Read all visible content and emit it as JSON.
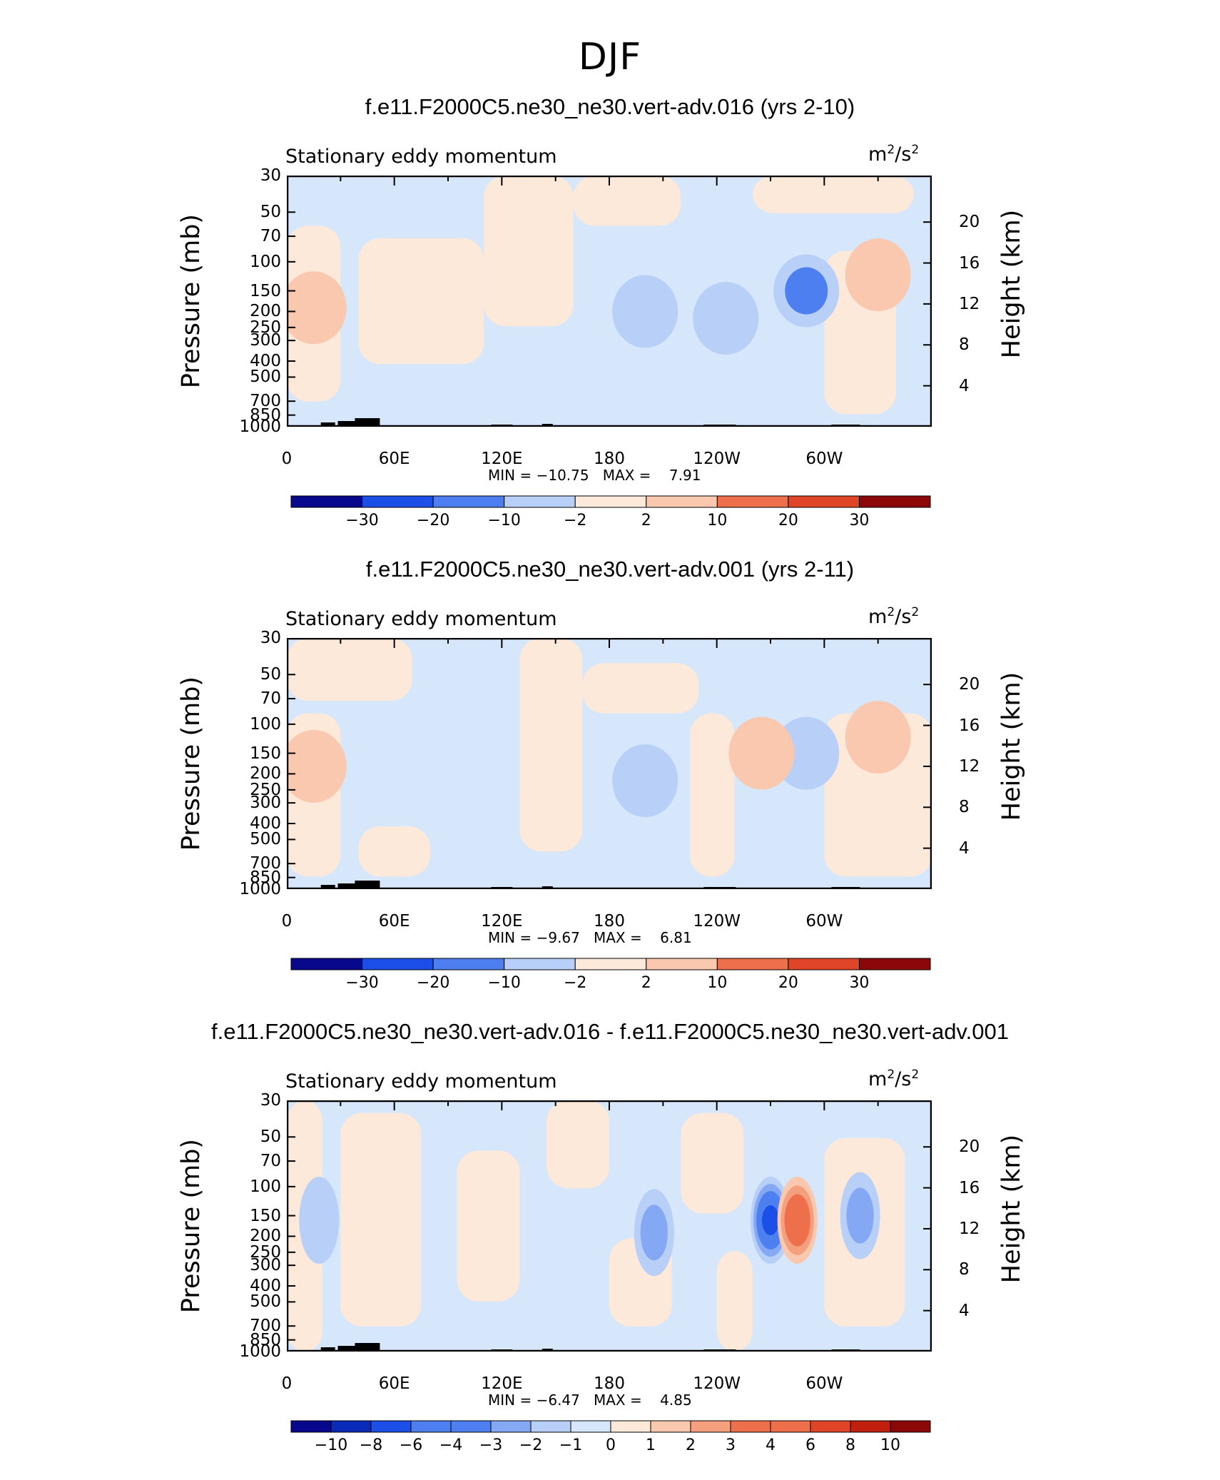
{
  "title": "DJF",
  "panels": [
    {
      "title": "f.e11.F2000C5.ne30_ne30.vert-adv.016 (yrs 2-10)",
      "left_label": "Stationary eddy momentum",
      "units_base": "m",
      "units_exp1": "2",
      "units_mid": "/s",
      "units_exp2": "2",
      "min_label": "MIN =",
      "min_value": "−10.75",
      "max_label": "MAX =",
      "max_value": "7.91",
      "colorbar_labels": [
        "−30",
        "−20",
        "−10",
        "−2",
        "2",
        "10",
        "20",
        "30"
      ]
    },
    {
      "title": "f.e11.F2000C5.ne30_ne30.vert-adv.001 (yrs 2-11)",
      "left_label": "Stationary eddy momentum",
      "units_base": "m",
      "units_exp1": "2",
      "units_mid": "/s",
      "units_exp2": "2",
      "min_label": "MIN =",
      "min_value": "−9.67",
      "max_label": "MAX =",
      "max_value": "6.81",
      "colorbar_labels": [
        "−30",
        "−20",
        "−10",
        "−2",
        "2",
        "10",
        "20",
        "30"
      ]
    },
    {
      "title": "f.e11.F2000C5.ne30_ne30.vert-adv.016 - f.e11.F2000C5.ne30_ne30.vert-adv.001",
      "left_label": "Stationary eddy momentum",
      "units_base": "m",
      "units_exp1": "2",
      "units_mid": "/s",
      "units_exp2": "2",
      "min_label": "MIN =",
      "min_value": "−6.47",
      "max_label": "MAX =",
      "max_value": "4.85",
      "colorbar_labels": [
        "−10",
        "−8",
        "−6",
        "−4",
        "−3",
        "−2",
        "−1",
        "0",
        "1",
        "2",
        "3",
        "4",
        "6",
        "8",
        "10"
      ]
    }
  ],
  "axes": {
    "ylabel": "Pressure (mb)",
    "ylabel_right": "Height (km)",
    "pressure_ticks": [
      "30",
      "50",
      "70",
      "100",
      "150",
      "200",
      "250",
      "300",
      "400",
      "500",
      "700",
      "850",
      "1000"
    ],
    "height_ticks": [
      "20",
      "16",
      "12",
      "8",
      "4"
    ],
    "x_ticks": [
      "0",
      "60E",
      "120E",
      "180",
      "120W",
      "60W"
    ]
  },
  "colors": {
    "fill_palette": [
      "#08088c",
      "#0a2ab8",
      "#1c4fe8",
      "#4d7ff0",
      "#85a8f5",
      "#b8cff8",
      "#d6e6fb",
      "#fde9d9",
      "#f9c8ae",
      "#f4a07e",
      "#ee6f4c",
      "#e14527",
      "#c2200f",
      "#8c0808"
    ]
  },
  "chart_data": [
    {
      "type": "heatmap",
      "title": "f.e11.F2000C5.ne30_ne30.vert-adv.016 (yrs 2-10)",
      "ylabel": "Pressure (mb)",
      "ylabel_right": "Height (km)",
      "x_ticks": [
        "0",
        "60E",
        "120E",
        "180",
        "120W",
        "60W"
      ],
      "y_range": [
        1000,
        30
      ],
      "y_scale": "log",
      "contour_levels": [
        -30,
        -20,
        -10,
        -2,
        2,
        10,
        20,
        30
      ],
      "min": -10.75,
      "max": 7.91,
      "features": [
        {
          "lon": 200,
          "p": 200,
          "value": -5
        },
        {
          "lon": 290,
          "p": 150,
          "value": -10.75
        },
        {
          "lon": 245,
          "p": 220,
          "value": -3
        },
        {
          "lon": 15,
          "p": 190,
          "value": 7.91
        },
        {
          "lon": 330,
          "p": 120,
          "value": 3
        }
      ]
    },
    {
      "type": "heatmap",
      "title": "f.e11.F2000C5.ne30_ne30.vert-adv.001 (yrs 2-11)",
      "ylabel": "Pressure (mb)",
      "ylabel_right": "Height (km)",
      "x_ticks": [
        "0",
        "60E",
        "120E",
        "180",
        "120W",
        "60W"
      ],
      "y_range": [
        1000,
        30
      ],
      "y_scale": "log",
      "contour_levels": [
        -30,
        -20,
        -10,
        -2,
        2,
        10,
        20,
        30
      ],
      "min": -9.67,
      "max": 6.81,
      "features": [
        {
          "lon": 200,
          "p": 220,
          "value": -3
        },
        {
          "lon": 290,
          "p": 150,
          "value": -9.67
        },
        {
          "lon": 15,
          "p": 180,
          "value": 6.81
        },
        {
          "lon": 265,
          "p": 150,
          "value": 5
        },
        {
          "lon": 330,
          "p": 120,
          "value": 3
        }
      ]
    },
    {
      "type": "heatmap",
      "title": "f.e11.F2000C5.ne30_ne30.vert-adv.016 - f.e11.F2000C5.ne30_ne30.vert-adv.001",
      "ylabel": "Pressure (mb)",
      "ylabel_right": "Height (km)",
      "x_ticks": [
        "0",
        "60E",
        "120E",
        "180",
        "120W",
        "60W"
      ],
      "y_range": [
        1000,
        30
      ],
      "y_scale": "log",
      "contour_levels": [
        -10,
        -8,
        -6,
        -4,
        -3,
        -2,
        -1,
        0,
        1,
        2,
        3,
        4,
        6,
        8,
        10
      ],
      "min": -6.47,
      "max": 4.85,
      "features": [
        {
          "lon": 270,
          "p": 160,
          "value": -6.47
        },
        {
          "lon": 285,
          "p": 160,
          "value": 4.85
        },
        {
          "lon": 205,
          "p": 190,
          "value": -2.5
        },
        {
          "lon": 320,
          "p": 150,
          "value": -2
        },
        {
          "lon": 18,
          "p": 160,
          "value": -1.5
        }
      ]
    }
  ]
}
